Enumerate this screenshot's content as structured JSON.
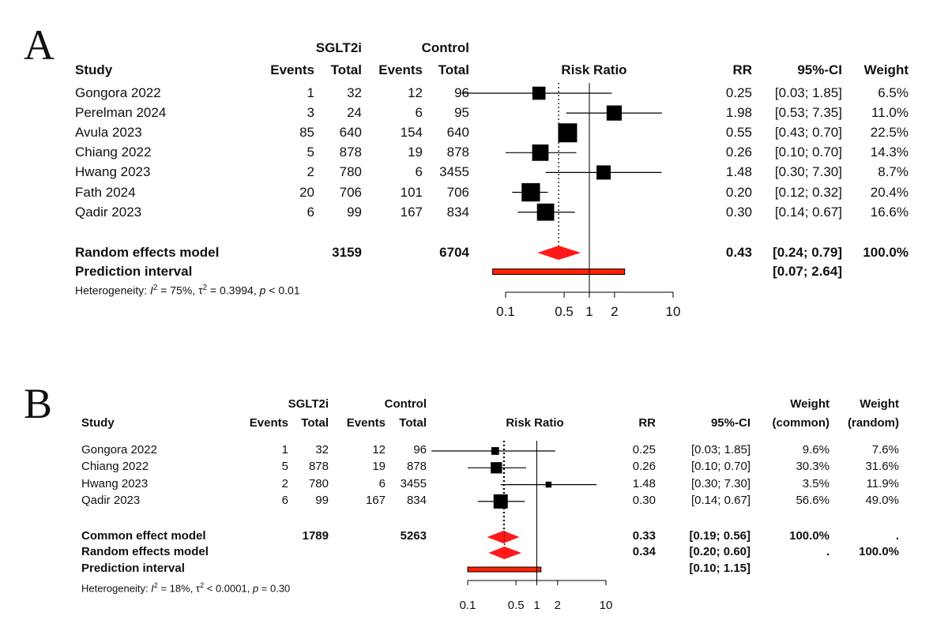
{
  "chart_data": [
    {
      "type": "forest",
      "panel_label": "A",
      "headers": {
        "study": "Study",
        "group_treat": "SGLT2i",
        "group_ctrl": "Control",
        "events": "Events",
        "total": "Total",
        "effect": "Risk Ratio",
        "rr": "RR",
        "ci": "95%-CI",
        "weight": "Weight"
      },
      "studies": [
        {
          "name": "Gongora 2022",
          "e1": "1",
          "n1": "32",
          "e2": "12",
          "n2": "96",
          "rr": 0.25,
          "lo": 0.03,
          "hi": 1.85,
          "rr_text": "0.25",
          "ci_text": "[0.03; 1.85]",
          "w": 6.5,
          "w_text": "6.5%"
        },
        {
          "name": "Perelman 2024",
          "e1": "3",
          "n1": "24",
          "e2": "6",
          "n2": "95",
          "rr": 1.98,
          "lo": 0.53,
          "hi": 7.35,
          "rr_text": "1.98",
          "ci_text": "[0.53; 7.35]",
          "w": 11.0,
          "w_text": "11.0%"
        },
        {
          "name": "Avula 2023",
          "e1": "85",
          "n1": "640",
          "e2": "154",
          "n2": "640",
          "rr": 0.55,
          "lo": 0.43,
          "hi": 0.7,
          "rr_text": "0.55",
          "ci_text": "[0.43; 0.70]",
          "w": 22.5,
          "w_text": "22.5%"
        },
        {
          "name": "Chiang 2022",
          "e1": "5",
          "n1": "878",
          "e2": "19",
          "n2": "878",
          "rr": 0.26,
          "lo": 0.1,
          "hi": 0.7,
          "rr_text": "0.26",
          "ci_text": "[0.10; 0.70]",
          "w": 14.3,
          "w_text": "14.3%"
        },
        {
          "name": "Hwang 2023",
          "e1": "2",
          "n1": "780",
          "e2": "6",
          "n2": "3455",
          "rr": 1.48,
          "lo": 0.3,
          "hi": 7.3,
          "rr_text": "1.48",
          "ci_text": "[0.30; 7.30]",
          "w": 8.7,
          "w_text": "8.7%"
        },
        {
          "name": "Fath 2024",
          "e1": "20",
          "n1": "706",
          "e2": "101",
          "n2": "706",
          "rr": 0.2,
          "lo": 0.12,
          "hi": 0.32,
          "rr_text": "0.20",
          "ci_text": "[0.12; 0.32]",
          "w": 20.4,
          "w_text": "20.4%"
        },
        {
          "name": "Qadir 2023",
          "e1": "6",
          "n1": "99",
          "e2": "167",
          "n2": "834",
          "rr": 0.3,
          "lo": 0.14,
          "hi": 0.67,
          "rr_text": "0.30",
          "ci_text": "[0.14; 0.67]",
          "w": 16.6,
          "w_text": "16.6%"
        }
      ],
      "pooled": [
        {
          "label": "Random effects model",
          "n1": "3159",
          "n2": "6704",
          "rr": 0.43,
          "lo": 0.24,
          "hi": 0.79,
          "rr_text": "0.43",
          "ci_text": "[0.24; 0.79]",
          "w_text": "100.0%"
        }
      ],
      "prediction": {
        "label": "Prediction interval",
        "lo": 0.07,
        "hi": 2.64,
        "ci_text": "[0.07; 2.64]"
      },
      "heterogeneity": {
        "prefix": "Heterogeneity: ",
        "i2": "I",
        "i2_val": " = 75%, ",
        "tau": "τ",
        "tau_val": " = 0.3994, ",
        "p": "p",
        "p_val": " < 0.01"
      },
      "x_axis": {
        "scale": "log",
        "ticks": [
          0.1,
          0.5,
          1,
          2,
          10
        ],
        "tick_labels": [
          "0.1",
          "0.5",
          "1",
          "2",
          "10"
        ],
        "range": [
          0.1,
          10
        ],
        "null_value": 1
      }
    },
    {
      "type": "forest",
      "panel_label": "B",
      "headers": {
        "study": "Study",
        "group_treat": "SGLT2i",
        "group_ctrl": "Control",
        "events": "Events",
        "total": "Total",
        "effect": "Risk Ratio",
        "rr": "RR",
        "ci": "95%-CI",
        "weight": "Weight",
        "w_common": "(common)",
        "w_random": "(random)"
      },
      "studies": [
        {
          "name": "Gongora 2022",
          "e1": "1",
          "n1": "32",
          "e2": "12",
          "n2": "96",
          "rr": 0.25,
          "lo": 0.03,
          "hi": 1.85,
          "rr_text": "0.25",
          "ci_text": "[0.03; 1.85]",
          "wc": 9.6,
          "wc_text": "9.6%",
          "wr_text": "7.6%"
        },
        {
          "name": "Chiang 2022",
          "e1": "5",
          "n1": "878",
          "e2": "19",
          "n2": "878",
          "rr": 0.26,
          "lo": 0.1,
          "hi": 0.7,
          "rr_text": "0.26",
          "ci_text": "[0.10; 0.70]",
          "wc": 30.3,
          "wc_text": "30.3%",
          "wr_text": "31.6%"
        },
        {
          "name": "Hwang 2023",
          "e1": "2",
          "n1": "780",
          "e2": "6",
          "n2": "3455",
          "rr": 1.48,
          "lo": 0.3,
          "hi": 7.3,
          "rr_text": "1.48",
          "ci_text": "[0.30; 7.30]",
          "wc": 3.5,
          "wc_text": "3.5%",
          "wr_text": "11.9%"
        },
        {
          "name": "Qadir 2023",
          "e1": "6",
          "n1": "99",
          "e2": "167",
          "n2": "834",
          "rr": 0.3,
          "lo": 0.14,
          "hi": 0.67,
          "rr_text": "0.30",
          "ci_text": "[0.14; 0.67]",
          "wc": 56.6,
          "wc_text": "56.6%",
          "wr_text": "49.0%"
        }
      ],
      "pooled": [
        {
          "label": "Common effect model",
          "n1": "1789",
          "n2": "5263",
          "rr": 0.33,
          "lo": 0.19,
          "hi": 0.56,
          "rr_text": "0.33",
          "ci_text": "[0.19; 0.56]",
          "wc_text": "100.0%",
          "wr_text": "."
        },
        {
          "label": "Random effects model",
          "n1": "",
          "n2": "",
          "rr": 0.34,
          "lo": 0.2,
          "hi": 0.6,
          "rr_text": "0.34",
          "ci_text": "[0.20; 0.60]",
          "wc_text": ".",
          "wr_text": "100.0%"
        }
      ],
      "prediction": {
        "label": "Prediction interval",
        "lo": 0.1,
        "hi": 1.15,
        "ci_text": "[0.10; 1.15]"
      },
      "heterogeneity": {
        "prefix": "Heterogeneity: ",
        "i2": "I",
        "i2_val": " = 18%, ",
        "tau": "τ",
        "tau_val": " < 0.0001, ",
        "p": "p",
        "p_val": " = 0.30"
      },
      "x_axis": {
        "scale": "log",
        "ticks": [
          0.1,
          0.5,
          1,
          2,
          10
        ],
        "tick_labels": [
          "0.1",
          "0.5",
          "1",
          "2",
          "10"
        ],
        "range": [
          0.1,
          10
        ],
        "null_value": 1
      }
    }
  ],
  "colors": {
    "diamond": "#ff1a1a",
    "prediction_fill": "#ff2200",
    "line": "#000000"
  }
}
